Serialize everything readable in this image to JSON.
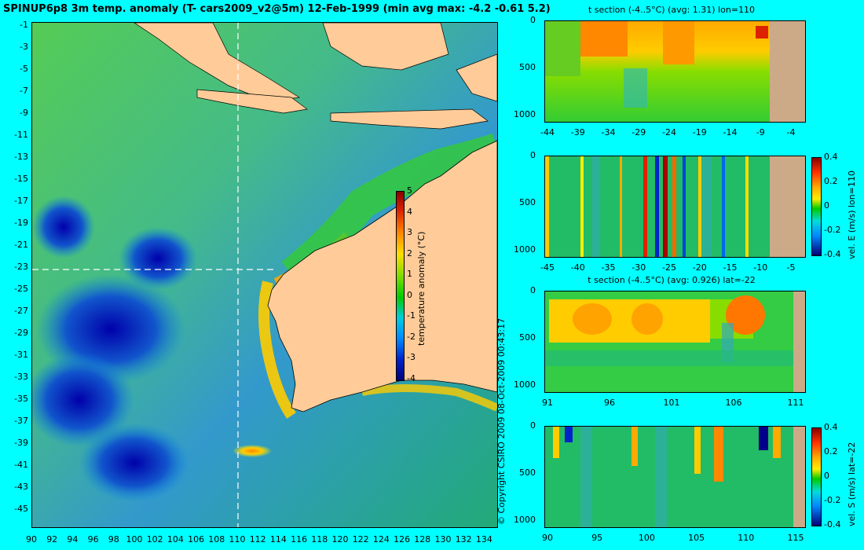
{
  "main_map": {
    "title": "SPINUP6p8 3m temp. anomaly (T- cars2009_v2@5m) 12-Feb-1999 (min avg max: -4.2 -0.61 5.2)",
    "y_ticks": [
      "-1",
      "-3",
      "-5",
      "-7",
      "-9",
      "-11",
      "-13",
      "-15",
      "-17",
      "-19",
      "-21",
      "-23",
      "-25",
      "-27",
      "-29",
      "-31",
      "-33",
      "-35",
      "-37",
      "-39",
      "-41",
      "-43",
      "-45"
    ],
    "x_ticks": [
      "90",
      "92",
      "94",
      "96",
      "98",
      "100",
      "102",
      "104",
      "106",
      "108",
      "110",
      "112",
      "114",
      "116",
      "118",
      "120",
      "122",
      "124",
      "126",
      "128",
      "130",
      "132",
      "134"
    ],
    "section_lon": 110,
    "section_lat": -22,
    "colorbar": {
      "label": "temperature anomaly (°C)",
      "ticks": [
        "5",
        "4",
        "3",
        "2",
        "1",
        "0",
        "-1",
        "-2",
        "-3",
        "-4"
      ]
    },
    "colors": {
      "ocean": "#33bb55",
      "land": "#ffcc99",
      "cold": "#0000aa",
      "warm": "#ff3300"
    }
  },
  "copyright": "© Copyright CSIRO 2009  08-Oct-2009 00:43:17",
  "panels": [
    {
      "id": "t-section-lon",
      "title": "t section (-4..5°C) (avg: 1.31) lon=110",
      "y_ticks": [
        "0",
        "500",
        "1000"
      ],
      "x_ticks": [
        "-44",
        "-39",
        "-34",
        "-29",
        "-24",
        "-19",
        "-14",
        "-9",
        "-4"
      ],
      "has_colorbar": false
    },
    {
      "id": "vel-e-lon",
      "title": "",
      "y_ticks": [
        "0",
        "500",
        "1000"
      ],
      "x_ticks": [
        "-45",
        "-40",
        "-35",
        "-30",
        "-25",
        "-20",
        "-15",
        "-10",
        "-5"
      ],
      "has_colorbar": true,
      "colorbar": {
        "label": "vel. E (m/s) lon=110",
        "ticks": [
          "0.4",
          "0.2",
          "0",
          "-0.2",
          "-0.4"
        ]
      }
    },
    {
      "id": "t-section-lat",
      "title": "t section (-4..5°C) (avg: 0.926) lat=-22",
      "y_ticks": [
        "0",
        "500",
        "1000"
      ],
      "x_ticks": [
        "91",
        "96",
        "101",
        "106",
        "111"
      ],
      "has_colorbar": false
    },
    {
      "id": "vel-s-lat",
      "title": "",
      "y_ticks": [
        "0",
        "500",
        "1000"
      ],
      "x_ticks": [
        "90",
        "95",
        "100",
        "105",
        "110",
        "115"
      ],
      "has_colorbar": true,
      "colorbar": {
        "label": "vel. S (m/s) lat=-22",
        "ticks": [
          "0.4",
          "0.2",
          "0",
          "-0.2",
          "-0.4"
        ]
      }
    }
  ]
}
